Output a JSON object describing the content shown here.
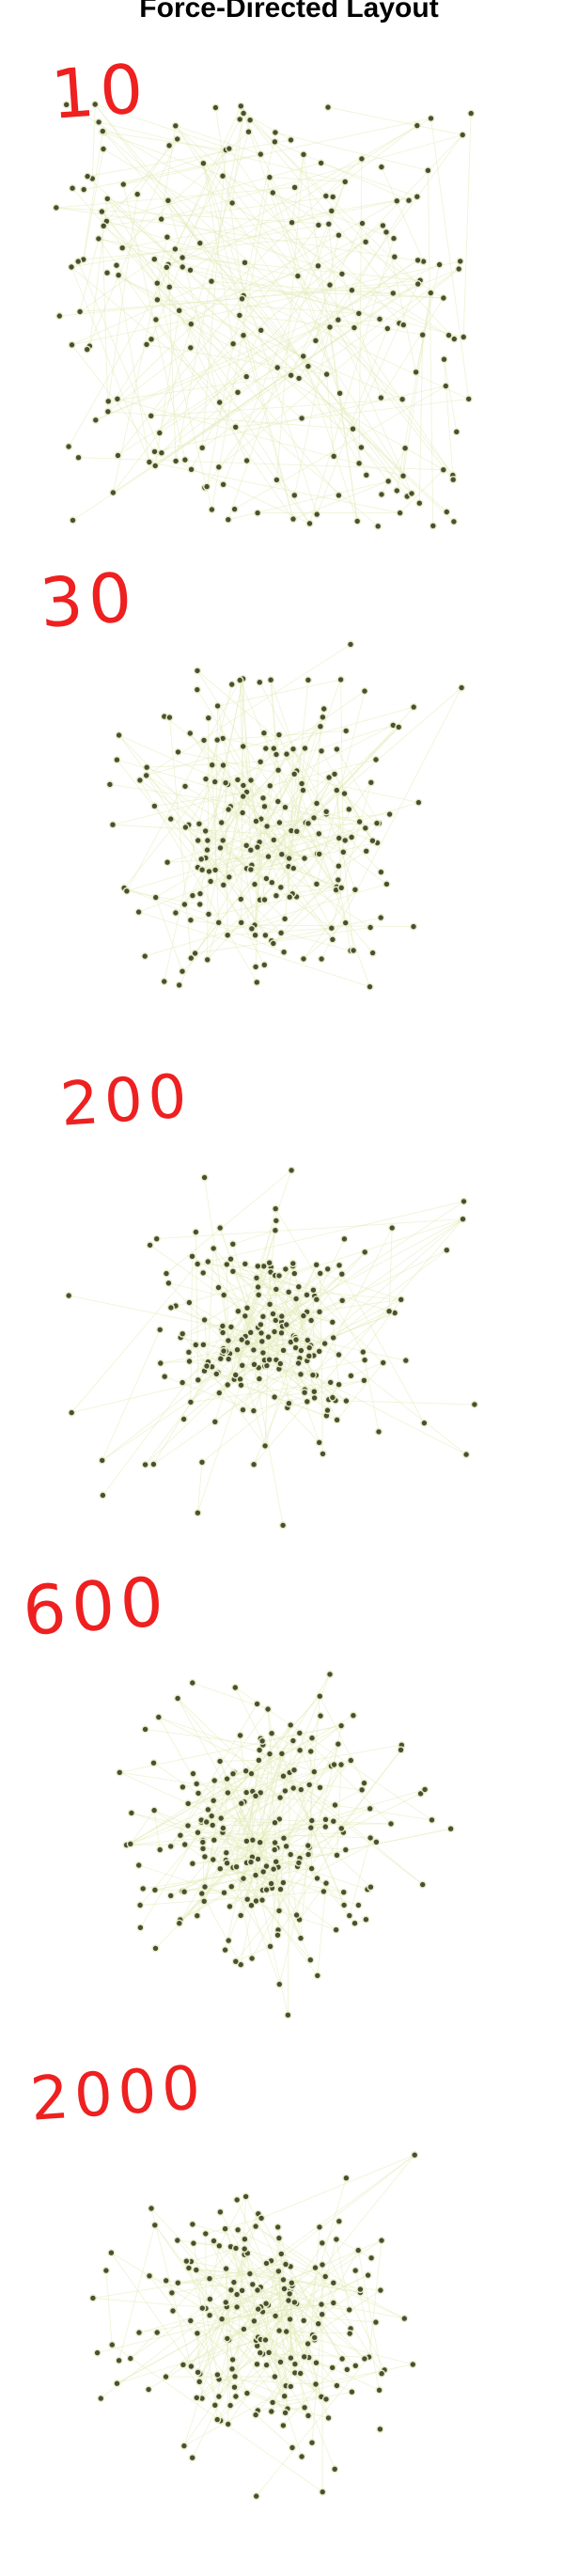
{
  "title": "Force-Directed Layout",
  "colors": {
    "label": "#ee2020",
    "node_fill": "#4a4f32",
    "node_stroke": "#e8ecc8",
    "edge": "#e2ecb8"
  },
  "panels": [
    {
      "label": "10",
      "spread": "random",
      "node_count": 210
    },
    {
      "label": "30",
      "spread": "loose",
      "node_count": 210
    },
    {
      "label": "200",
      "spread": "clustered",
      "node_count": 210
    },
    {
      "label": "600",
      "spread": "balanced",
      "node_count": 210
    },
    {
      "label": "2000",
      "spread": "settled",
      "node_count": 210
    }
  ]
}
